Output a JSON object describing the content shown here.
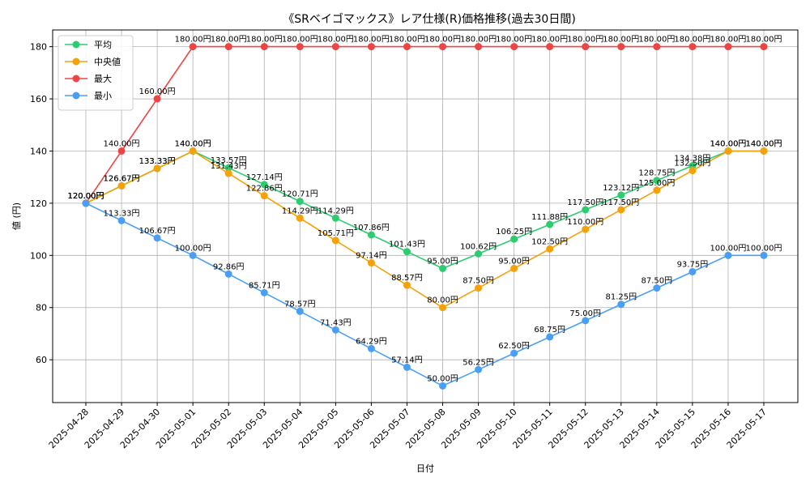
{
  "chart_data": {
    "type": "line",
    "title": "《SRベイゴマックス》レア仕様(R)価格推移(過去30日間)",
    "xlabel": "日付",
    "ylabel": "値 (円)",
    "unit_suffix": "円",
    "categories": [
      "2025-04-28",
      "2025-04-29",
      "2025-04-30",
      "2025-05-01",
      "2025-05-02",
      "2025-05-03",
      "2025-05-04",
      "2025-05-05",
      "2025-05-06",
      "2025-05-07",
      "2025-05-08",
      "2025-05-09",
      "2025-05-10",
      "2025-05-11",
      "2025-05-12",
      "2025-05-13",
      "2025-05-14",
      "2025-05-15",
      "2025-05-16",
      "2025-05-17"
    ],
    "ylim": [
      43.6,
      186.4
    ],
    "yticks": [
      60,
      80,
      100,
      120,
      140,
      160,
      180
    ],
    "grid": true,
    "legend_position": "top-left",
    "series": [
      {
        "name": "平均",
        "color": "#2ecc71",
        "values": [
          120.0,
          126.67,
          133.33,
          140.0,
          133.57,
          127.14,
          120.71,
          114.29,
          107.86,
          101.43,
          95.0,
          100.62,
          106.25,
          111.88,
          117.5,
          123.12,
          128.75,
          134.38,
          140.0,
          140.0
        ]
      },
      {
        "name": "中央値",
        "color": "#f5a10a",
        "values": [
          120.0,
          126.67,
          133.33,
          140.0,
          131.43,
          122.86,
          114.29,
          105.71,
          97.14,
          88.57,
          80.0,
          87.5,
          95.0,
          102.5,
          110.0,
          117.5,
          125.0,
          132.5,
          140.0,
          140.0
        ]
      },
      {
        "name": "最大",
        "color": "#ef4444",
        "values": [
          120.0,
          140.0,
          160.0,
          180.0,
          180.0,
          180.0,
          180.0,
          180.0,
          180.0,
          180.0,
          180.0,
          180.0,
          180.0,
          180.0,
          180.0,
          180.0,
          180.0,
          180.0,
          180.0,
          180.0
        ]
      },
      {
        "name": "最小",
        "color": "#4a9ff5",
        "values": [
          120.0,
          113.33,
          106.67,
          100.0,
          92.86,
          85.71,
          78.57,
          71.43,
          64.29,
          57.14,
          50.0,
          56.25,
          62.5,
          68.75,
          75.0,
          81.25,
          87.5,
          93.75,
          100.0,
          100.0
        ]
      }
    ]
  }
}
